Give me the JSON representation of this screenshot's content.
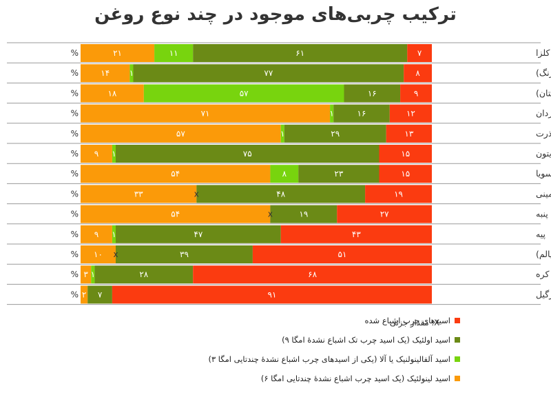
{
  "chart_data": {
    "type": "bar",
    "orientation": "horizontal-stacked-100",
    "title": "ترکیب چربی‌های موجود در چند نوع روغن",
    "unit_symbol": "%",
    "categories": [
      "روغن کلزا",
      "روغن کافشه ـگلرنگ)",
      "روغن بزرک (کتان)",
      "روغن آفتابگردان",
      "روغن ذرت",
      "روغن زیتون",
      "روغن سویا",
      "روغن بادام زمینی",
      "روغن پنبه",
      "پیه",
      "روغن نخل (پالم)",
      "کره",
      "روغن نارگیل"
    ],
    "series": [
      {
        "key": "sat",
        "name": "اسیدهای چرب اشباع شده",
        "color": "#fb3b10",
        "values": [
          7,
          8,
          9,
          12,
          13,
          15,
          15,
          19,
          27,
          43,
          51,
          68,
          91
        ],
        "labels": [
          "۷",
          "۸",
          "۹",
          "۱۲",
          "۱۳",
          "۱۵",
          "۱۵",
          "۱۹",
          "۲۷",
          "۴۳",
          "۵۱",
          "۶۸",
          "۹۱"
        ]
      },
      {
        "key": "mono",
        "name": "اسید اولئیک (یک اسید چرب تک اشباع نشدهٔ امگا ۹)",
        "color": "#6b8a16",
        "values": [
          61,
          77,
          16,
          16,
          29,
          75,
          23,
          48,
          19,
          47,
          39,
          28,
          7
        ],
        "labels": [
          "۶۱",
          "۷۷",
          "۱۶",
          "۱۶",
          "۲۹",
          "۷۵",
          "۲۳",
          "۴۸",
          "۱۹",
          "۴۷",
          "۳۹",
          "۲۸",
          "۷"
        ]
      },
      {
        "key": "ala",
        "name": "اسید آلفالینولنیک یا آلا (یکی از اسیدهای چرب اشباع نشدهٔ چندتایی امگا ۳)",
        "color": "#78d40e",
        "values": [
          11,
          1,
          57,
          1,
          1,
          1,
          8,
          0,
          0,
          1,
          0,
          1,
          0
        ],
        "labels": [
          "۱۱",
          "۱",
          "۵۷",
          "۱",
          "۱",
          "۱",
          "۸",
          "x",
          "x",
          "۱",
          "x",
          "۱",
          ""
        ]
      },
      {
        "key": "la",
        "name": "اسید لینولئیک (یک اسید چرب اشباع نشدهٔ چندتایی امگا ۶)",
        "color": "#fb9a09",
        "values": [
          21,
          14,
          18,
          71,
          57,
          9,
          54,
          33,
          54,
          9,
          10,
          3,
          2
        ],
        "labels": [
          "۲۱",
          "۱۴",
          "۱۸",
          "۷۱",
          "۵۷",
          "۹",
          "۵۴",
          "۳۳",
          "۵۴",
          "۹",
          "۱۰",
          "۳",
          "۲"
        ]
      }
    ],
    "trace_note": "X: مقدار جزئی"
  }
}
